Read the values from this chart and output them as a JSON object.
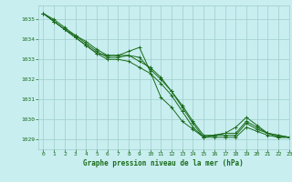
{
  "title": "Graphe pression niveau de la mer (hPa)",
  "bg_color": "#c8eef0",
  "grid_color": "#a0cccc",
  "line_color": "#1a6b1a",
  "marker": "+",
  "xlim": [
    -0.5,
    23
  ],
  "ylim": [
    1028.5,
    1035.7
  ],
  "yticks": [
    1029,
    1030,
    1031,
    1032,
    1033,
    1034,
    1035
  ],
  "xticks": [
    0,
    1,
    2,
    3,
    4,
    5,
    6,
    7,
    8,
    9,
    10,
    11,
    12,
    13,
    14,
    15,
    16,
    17,
    18,
    19,
    20,
    21,
    22,
    23
  ],
  "series": [
    [
      1035.3,
      1034.9,
      1034.5,
      1034.2,
      1033.8,
      1033.4,
      1033.1,
      1033.1,
      1033.2,
      1033.1,
      1032.5,
      1032.0,
      1031.4,
      1030.6,
      1029.8,
      1029.1,
      1029.2,
      1029.3,
      1029.3,
      1029.9,
      1029.6,
      1029.3,
      1029.2,
      1029.1
    ],
    [
      1035.3,
      1034.9,
      1034.5,
      1034.1,
      1033.7,
      1033.3,
      1033.0,
      1033.0,
      1032.9,
      1032.6,
      1032.3,
      1031.8,
      1031.2,
      1030.4,
      1029.6,
      1029.1,
      1029.1,
      1029.1,
      1029.1,
      1029.6,
      1029.4,
      1029.2,
      1029.1,
      1029.1
    ],
    [
      1035.3,
      1034.9,
      1034.5,
      1034.1,
      1033.7,
      1033.3,
      1033.2,
      1033.2,
      1033.4,
      1033.6,
      1032.4,
      1031.1,
      1030.6,
      1029.9,
      1029.5,
      1029.1,
      1029.2,
      1029.3,
      1029.6,
      1030.1,
      1029.7,
      1029.3,
      1029.1,
      1029.1
    ],
    [
      1035.3,
      1035.0,
      1034.6,
      1034.2,
      1033.9,
      1033.5,
      1033.2,
      1033.2,
      1033.2,
      1032.9,
      1032.6,
      1032.1,
      1031.4,
      1030.7,
      1029.9,
      1029.2,
      1029.2,
      1029.2,
      1029.2,
      1029.8,
      1029.5,
      1029.3,
      1029.2,
      1029.1
    ]
  ]
}
